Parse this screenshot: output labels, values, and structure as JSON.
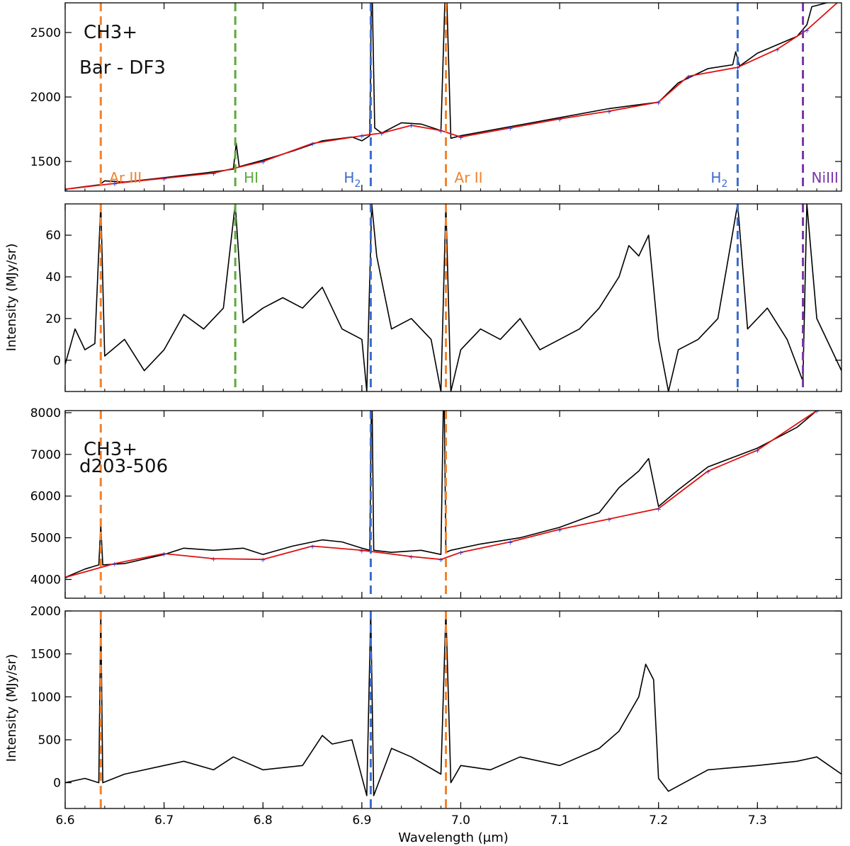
{
  "chart_data": [
    {
      "type": "line",
      "panel": "bar-df3-spectrum",
      "label_line1": "CH3+",
      "label_line2_a": "Bar - ",
      "label_line2_b": "DF3",
      "ylabel": "Intensity (MJy/sr)",
      "xlim": [
        6.6,
        7.385
      ],
      "ylim": [
        1270,
        2730
      ],
      "yticks": [
        1500,
        2000,
        2500
      ],
      "xticks": [
        6.6,
        6.7,
        6.8,
        6.9,
        7.0,
        7.1,
        7.2,
        7.3
      ],
      "xtick_labels": [
        "6.6",
        "6.7",
        "6.8",
        "6.9",
        "7.0",
        "7.1",
        "7.2",
        "7.3"
      ],
      "series": [
        {
          "role": "spectrum",
          "x": [
            6.6,
            6.62,
            6.635,
            6.64,
            6.66,
            6.7,
            6.74,
            6.77,
            6.773,
            6.776,
            6.8,
            6.83,
            6.86,
            6.89,
            6.9,
            6.908,
            6.91,
            6.913,
            6.92,
            6.94,
            6.96,
            6.98,
            6.985,
            6.99,
            7.0,
            7.05,
            7.1,
            7.15,
            7.2,
            7.22,
            7.25,
            7.275,
            7.278,
            7.282,
            7.3,
            7.34,
            7.35,
            7.355,
            7.385
          ],
          "y": [
            1285,
            1305,
            1320,
            1350,
            1340,
            1375,
            1410,
            1440,
            1640,
            1460,
            1510,
            1580,
            1660,
            1690,
            1660,
            1700,
            3000,
            1760,
            1720,
            1800,
            1790,
            1740,
            3000,
            1680,
            1700,
            1770,
            1840,
            1910,
            1960,
            2110,
            2220,
            2250,
            2350,
            2240,
            2340,
            2470,
            2560,
            2700,
            2760
          ]
        },
        {
          "role": "continuum",
          "x": [
            6.6,
            6.65,
            6.7,
            6.75,
            6.8,
            6.85,
            6.9,
            6.92,
            6.95,
            6.98,
            7.0,
            7.05,
            7.1,
            7.15,
            7.2,
            7.23,
            7.28,
            7.32,
            7.35,
            7.385
          ],
          "y": [
            1285,
            1330,
            1370,
            1410,
            1500,
            1640,
            1700,
            1720,
            1780,
            1740,
            1690,
            1760,
            1830,
            1890,
            1960,
            2160,
            2230,
            2370,
            2520,
            2760
          ]
        }
      ],
      "lines": [
        {
          "x": 6.636,
          "label": "Ar III",
          "color": "#f0822d"
        },
        {
          "x": 6.772,
          "label": "HI",
          "color": "#5aaa3c"
        },
        {
          "x": 6.909,
          "label": "H",
          "label_sub": "2",
          "color": "#3c6ccc"
        },
        {
          "x": 6.985,
          "label": "Ar II",
          "color": "#f0822d"
        },
        {
          "x": 7.28,
          "label": "H",
          "label_sub": "2",
          "color": "#3c6ccc"
        },
        {
          "x": 7.346,
          "label": "NiIII",
          "color": "#7a35a8"
        }
      ]
    },
    {
      "type": "line",
      "panel": "bar-df3-residual",
      "ylim": [
        -15,
        75
      ],
      "yticks": [
        0,
        20,
        40,
        60
      ],
      "series": [
        {
          "role": "residual",
          "x": [
            6.6,
            6.61,
            6.62,
            6.63,
            6.636,
            6.64,
            6.66,
            6.68,
            6.7,
            6.72,
            6.74,
            6.76,
            6.772,
            6.78,
            6.8,
            6.82,
            6.84,
            6.86,
            6.88,
            6.9,
            6.905,
            6.91,
            6.915,
            6.93,
            6.95,
            6.97,
            6.98,
            6.985,
            6.99,
            7.0,
            7.02,
            7.04,
            7.06,
            7.08,
            7.1,
            7.12,
            7.14,
            7.16,
            7.17,
            7.18,
            7.19,
            7.2,
            7.21,
            7.22,
            7.24,
            7.26,
            7.28,
            7.29,
            7.31,
            7.33,
            7.346,
            7.35,
            7.36,
            7.37,
            7.385
          ],
          "y": [
            -2,
            15,
            5,
            8,
            75,
            2,
            10,
            -5,
            5,
            22,
            15,
            25,
            75,
            18,
            25,
            30,
            25,
            35,
            15,
            10,
            -15,
            75,
            50,
            15,
            20,
            10,
            -15,
            75,
            -15,
            5,
            15,
            10,
            20,
            5,
            10,
            15,
            25,
            40,
            55,
            50,
            60,
            10,
            -15,
            5,
            10,
            20,
            75,
            15,
            25,
            10,
            -10,
            75,
            20,
            10,
            -5
          ]
        }
      ]
    },
    {
      "type": "line",
      "panel": "d203-spectrum",
      "label_line1": "CH3+",
      "label_line2": "d203-506",
      "ylabel": "Intensity (MJy/sr)",
      "ylim": [
        3550,
        8050
      ],
      "yticks": [
        4000,
        5000,
        6000,
        7000,
        8000
      ],
      "series": [
        {
          "role": "spectrum",
          "x": [
            6.6,
            6.62,
            6.634,
            6.636,
            6.638,
            6.66,
            6.7,
            6.72,
            6.75,
            6.78,
            6.8,
            6.83,
            6.86,
            6.88,
            6.9,
            6.908,
            6.91,
            6.912,
            6.93,
            6.96,
            6.98,
            6.983,
            6.985,
            6.99,
            7.02,
            7.06,
            7.1,
            7.14,
            7.16,
            7.18,
            7.19,
            7.2,
            7.22,
            7.25,
            7.3,
            7.34,
            7.36
          ],
          "y": [
            4050,
            4250,
            4350,
            5300,
            4350,
            4380,
            4600,
            4750,
            4700,
            4750,
            4600,
            4800,
            4950,
            4900,
            4750,
            4700,
            9000,
            4700,
            4650,
            4700,
            4600,
            9000,
            4650,
            4700,
            4850,
            5000,
            5250,
            5600,
            6200,
            6600,
            6900,
            5750,
            6150,
            6700,
            7150,
            7650,
            8050
          ]
        },
        {
          "role": "continuum",
          "x": [
            6.6,
            6.65,
            6.7,
            6.75,
            6.8,
            6.85,
            6.9,
            6.95,
            6.98,
            7.0,
            7.05,
            7.1,
            7.15,
            7.2,
            7.25,
            7.3,
            7.36
          ],
          "y": [
            4050,
            4380,
            4620,
            4500,
            4480,
            4800,
            4700,
            4550,
            4480,
            4650,
            4900,
            5200,
            5450,
            5700,
            6600,
            7100,
            8050
          ]
        }
      ],
      "lines": [
        {
          "x": 6.636,
          "color": "#f0822d"
        },
        {
          "x": 6.909,
          "color": "#3c6ccc"
        },
        {
          "x": 6.985,
          "color": "#f0822d"
        }
      ]
    },
    {
      "type": "line",
      "panel": "d203-residual",
      "xlabel": "Wavelength (μm)",
      "ylim": [
        -300,
        2000
      ],
      "yticks": [
        0,
        500,
        1000,
        1500,
        2000
      ],
      "series": [
        {
          "role": "residual",
          "x": [
            6.6,
            6.62,
            6.634,
            6.636,
            6.638,
            6.66,
            6.7,
            6.72,
            6.75,
            6.77,
            6.8,
            6.84,
            6.86,
            6.87,
            6.89,
            6.905,
            6.909,
            6.912,
            6.93,
            6.95,
            6.98,
            6.985,
            6.99,
            7.0,
            7.03,
            7.06,
            7.1,
            7.14,
            7.16,
            7.18,
            7.187,
            7.195,
            7.2,
            7.21,
            7.25,
            7.3,
            7.34,
            7.36,
            7.385
          ],
          "y": [
            0,
            50,
            0,
            2000,
            0,
            100,
            200,
            250,
            150,
            300,
            150,
            200,
            550,
            450,
            500,
            -150,
            2000,
            -150,
            400,
            300,
            100,
            2000,
            0,
            200,
            150,
            300,
            200,
            400,
            600,
            1000,
            1380,
            1200,
            50,
            -100,
            150,
            200,
            250,
            300,
            100
          ]
        }
      ]
    }
  ]
}
